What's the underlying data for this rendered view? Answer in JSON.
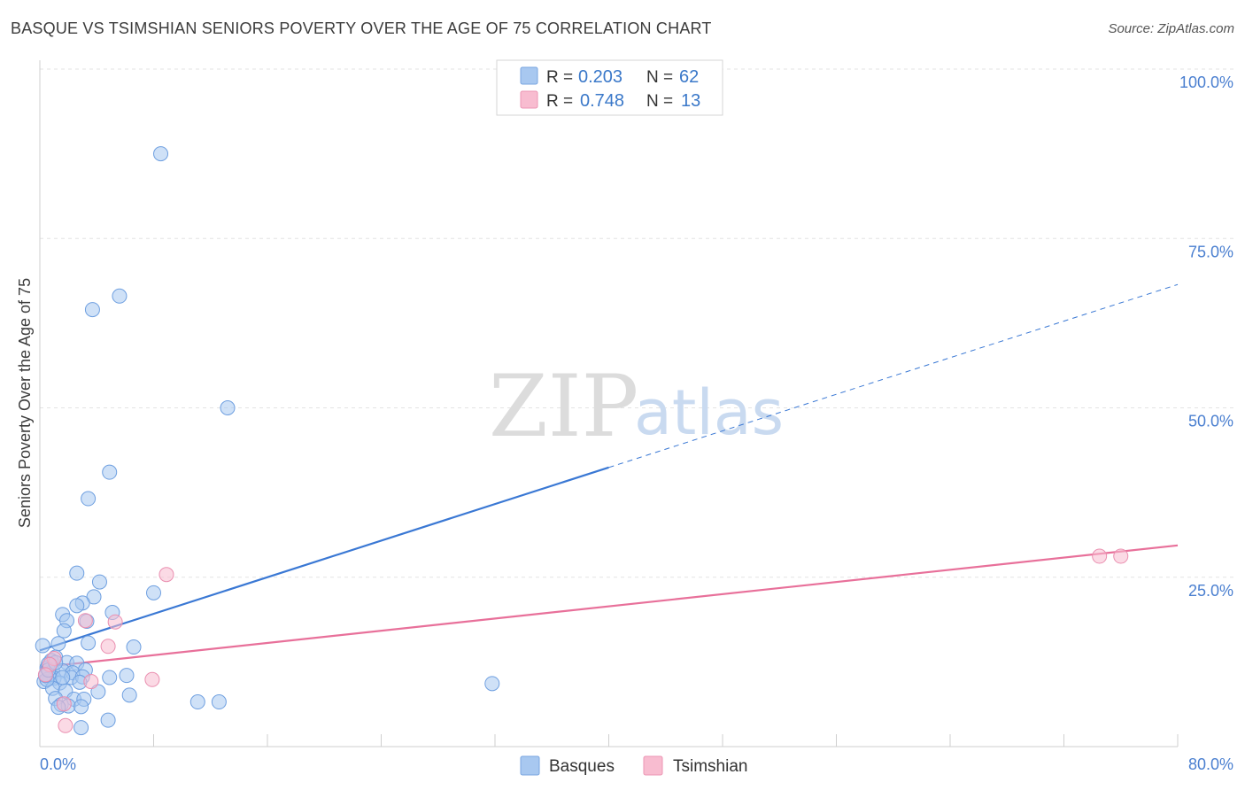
{
  "header": {
    "title": "BASQUE VS TSIMSHIAN SENIORS POVERTY OVER THE AGE OF 75 CORRELATION CHART",
    "source": "Source: ZipAtlas.com"
  },
  "watermark": {
    "zip": "ZIP",
    "atlas": "atlas"
  },
  "legend_box": {
    "rows": [
      {
        "r_label": "R =",
        "r_value": "0.203",
        "n_label": "N =",
        "n_value": "62",
        "color": "#a8c8f0"
      },
      {
        "r_label": "R =",
        "r_value": "0.748",
        "n_label": "N =",
        "n_value": "13",
        "color": "#f8bcd0"
      }
    ]
  },
  "bottom_legend": {
    "items": [
      "Basques",
      "Tsimshian"
    ]
  },
  "chart_data": {
    "type": "scatter",
    "title": "BASQUE VS TSIMSHIAN SENIORS POVERTY OVER THE AGE OF 75 CORRELATION CHART",
    "xlabel": "",
    "ylabel": "Seniors Poverty Over the Age of 75",
    "xlim": [
      0,
      80
    ],
    "ylim": [
      0,
      100
    ],
    "x_tick_labels": [
      "0.0%",
      "80.0%"
    ],
    "y_ticks": [
      25,
      50,
      75,
      100
    ],
    "y_tick_labels": [
      "25.0%",
      "50.0%",
      "75.0%",
      "100.0%"
    ],
    "grid": "horizontal dashed",
    "legend_position": "top-center",
    "colors": {
      "Basques": "#3a78d4",
      "Tsimshian": "#e8709a",
      "Basques_fill": "#a8c8f0",
      "Tsimshian_fill": "#f8bcd0"
    },
    "series": [
      {
        "name": "Basques",
        "r": 0.203,
        "n": 62,
        "points": [
          [
            8.5,
            87.5
          ],
          [
            5.6,
            66.5
          ],
          [
            3.7,
            64.5
          ],
          [
            13.2,
            50
          ],
          [
            4.9,
            40.5
          ],
          [
            3.4,
            36.6
          ],
          [
            2.6,
            25.6
          ],
          [
            4.2,
            24.3
          ],
          [
            8.0,
            22.7
          ],
          [
            3.8,
            22.1
          ],
          [
            3.0,
            21.2
          ],
          [
            2.6,
            20.8
          ],
          [
            1.6,
            19.5
          ],
          [
            5.1,
            19.8
          ],
          [
            1.9,
            18.6
          ],
          [
            3.3,
            18.5
          ],
          [
            1.7,
            17.1
          ],
          [
            1.3,
            15.2
          ],
          [
            3.4,
            15.3
          ],
          [
            6.6,
            14.7
          ],
          [
            0.2,
            14.9
          ],
          [
            1.1,
            13.2
          ],
          [
            0.8,
            12.7
          ],
          [
            1.9,
            12.4
          ],
          [
            2.6,
            12.3
          ],
          [
            0.5,
            11.6
          ],
          [
            0.9,
            11.1
          ],
          [
            1.6,
            11.2
          ],
          [
            3.2,
            11.3
          ],
          [
            2.3,
            10.9
          ],
          [
            0.4,
            10.5
          ],
          [
            1.0,
            10.1
          ],
          [
            2.2,
            10.2
          ],
          [
            0.7,
            10.1
          ],
          [
            3.0,
            10.3
          ],
          [
            4.9,
            10.2
          ],
          [
            6.1,
            10.5
          ],
          [
            0.3,
            9.6
          ],
          [
            1.4,
            9.4
          ],
          [
            2.8,
            9.5
          ],
          [
            0.9,
            8.6
          ],
          [
            1.8,
            8.2
          ],
          [
            4.1,
            8.1
          ],
          [
            6.3,
            7.6
          ],
          [
            1.1,
            7.1
          ],
          [
            2.4,
            7.0
          ],
          [
            3.1,
            7.0
          ],
          [
            1.5,
            6.2
          ],
          [
            2.0,
            6.0
          ],
          [
            2.9,
            5.9
          ],
          [
            11.1,
            6.6
          ],
          [
            12.6,
            6.6
          ],
          [
            1.3,
            5.8
          ],
          [
            4.8,
            3.9
          ],
          [
            2.9,
            2.8
          ],
          [
            31.8,
            9.3
          ],
          [
            0.6,
            12.2
          ],
          [
            0.5,
            9.9
          ],
          [
            0.4,
            10.5
          ],
          [
            0.6,
            11.3
          ],
          [
            1.1,
            12.4
          ],
          [
            1.6,
            10.2
          ]
        ],
        "trendline": {
          "x": [
            0,
            40
          ],
          "y": [
            14.2,
            41.2
          ],
          "dashed_extension": {
            "x": [
              40,
              80
            ],
            "y": [
              41.2,
              68.2
            ]
          }
        }
      },
      {
        "name": "Tsimshian",
        "r": 0.748,
        "n": 13,
        "points": [
          [
            8.9,
            25.4
          ],
          [
            3.2,
            18.6
          ],
          [
            5.3,
            18.4
          ],
          [
            4.8,
            14.8
          ],
          [
            1.0,
            13.0
          ],
          [
            0.7,
            12.1
          ],
          [
            0.4,
            10.6
          ],
          [
            7.9,
            9.9
          ],
          [
            3.6,
            9.6
          ],
          [
            1.7,
            6.3
          ],
          [
            1.8,
            3.1
          ],
          [
            74.5,
            28.1
          ],
          [
            76.0,
            28.1
          ]
        ],
        "trendline": {
          "x": [
            0,
            80
          ],
          "y": [
            11.7,
            29.7
          ]
        }
      }
    ]
  }
}
